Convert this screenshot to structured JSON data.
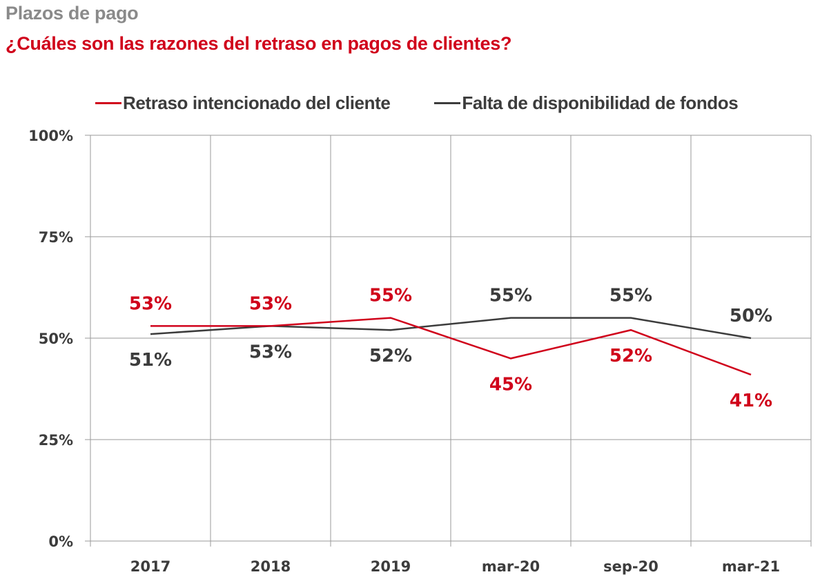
{
  "header": {
    "subtitle": "Plazos de pago",
    "title": "¿Cuáles son las razones del retraso en pagos de clientes?"
  },
  "colors": {
    "series1": "#d0021b",
    "series2": "#3c3c3c",
    "grid": "#9a9a9a",
    "text": "#3c3c3c"
  },
  "chart_data": {
    "type": "line",
    "title": "¿Cuáles son las razones del retraso en pagos de clientes?",
    "subtitle": "Plazos de pago",
    "xlabel": "",
    "ylabel": "",
    "categories": [
      "2017",
      "2018",
      "2019",
      "mar-20",
      "sep-20",
      "mar-21"
    ],
    "ylim": [
      0,
      100
    ],
    "yticks": [
      0,
      25,
      50,
      75,
      100
    ],
    "ytick_labels": [
      "0%",
      "25%",
      "50%",
      "75%",
      "100%"
    ],
    "grid": true,
    "legend_position": "top",
    "series": [
      {
        "name": "Retraso intencionado del cliente",
        "values": [
          53,
          53,
          55,
          45,
          52,
          41
        ],
        "labels": [
          "53%",
          "53%",
          "55%",
          "45%",
          "52%",
          "41%"
        ],
        "label_positions": [
          "above",
          "above",
          "above",
          "below",
          "below",
          "below"
        ]
      },
      {
        "name": "Falta de disponibilidad de fondos",
        "values": [
          51,
          53,
          52,
          55,
          55,
          50
        ],
        "labels": [
          "51%",
          "53%",
          "52%",
          "55%",
          "55%",
          "50%"
        ],
        "label_positions": [
          "below",
          "below",
          "below",
          "above",
          "above",
          "above"
        ]
      }
    ]
  }
}
